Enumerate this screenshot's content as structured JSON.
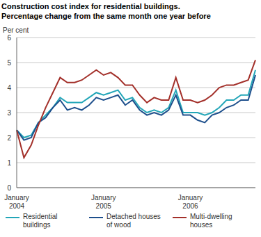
{
  "chart_data": {
    "type": "line",
    "title": "Construction cost index for residential buildings.",
    "subtitle": "Percentage change from the same month one year before",
    "y_label": "Per cent",
    "categories": [
      "January 2004",
      null,
      null,
      null,
      null,
      null,
      null,
      null,
      null,
      null,
      null,
      null,
      "January 2005",
      null,
      null,
      null,
      null,
      null,
      null,
      null,
      null,
      null,
      null,
      null,
      "January 2006",
      null,
      null,
      null,
      null,
      null,
      null,
      null,
      null,
      null
    ],
    "series": [
      {
        "name": "Residential buildings",
        "color": "#23a6b8",
        "values": [
          2.3,
          2.0,
          2.1,
          2.6,
          2.9,
          3.2,
          3.6,
          3.4,
          3.4,
          3.4,
          3.6,
          3.8,
          3.7,
          3.8,
          3.9,
          3.5,
          3.6,
          3.2,
          3.0,
          3.1,
          3.0,
          3.2,
          3.9,
          3.0,
          3.0,
          3.0,
          2.9,
          3.0,
          3.2,
          3.5,
          3.5,
          3.7,
          3.7,
          4.7
        ]
      },
      {
        "name": "Detached houses of wood",
        "color": "#1d4f8c",
        "values": [
          2.3,
          1.9,
          2.0,
          2.6,
          2.8,
          3.2,
          3.5,
          3.1,
          3.2,
          3.1,
          3.3,
          3.6,
          3.5,
          3.6,
          3.7,
          3.3,
          3.5,
          3.1,
          2.9,
          3.0,
          2.9,
          3.1,
          3.7,
          2.9,
          2.9,
          2.7,
          2.6,
          2.9,
          3.0,
          3.2,
          3.3,
          3.5,
          3.5,
          4.5
        ]
      },
      {
        "name": "Multi-dwelling houses",
        "color": "#a3302a",
        "values": [
          2.3,
          1.2,
          1.7,
          2.5,
          3.2,
          3.8,
          4.4,
          4.2,
          4.2,
          4.3,
          4.5,
          4.7,
          4.5,
          4.6,
          4.4,
          4.1,
          4.1,
          3.7,
          3.4,
          3.6,
          3.5,
          3.5,
          4.4,
          3.5,
          3.5,
          3.4,
          3.5,
          3.7,
          4.0,
          4.1,
          4.1,
          4.2,
          4.3,
          5.1
        ]
      }
    ],
    "ylim": [
      0,
      6
    ],
    "yticks": [
      0,
      1,
      2,
      3,
      4,
      5,
      6
    ],
    "grid": true,
    "legend": "bottom"
  }
}
